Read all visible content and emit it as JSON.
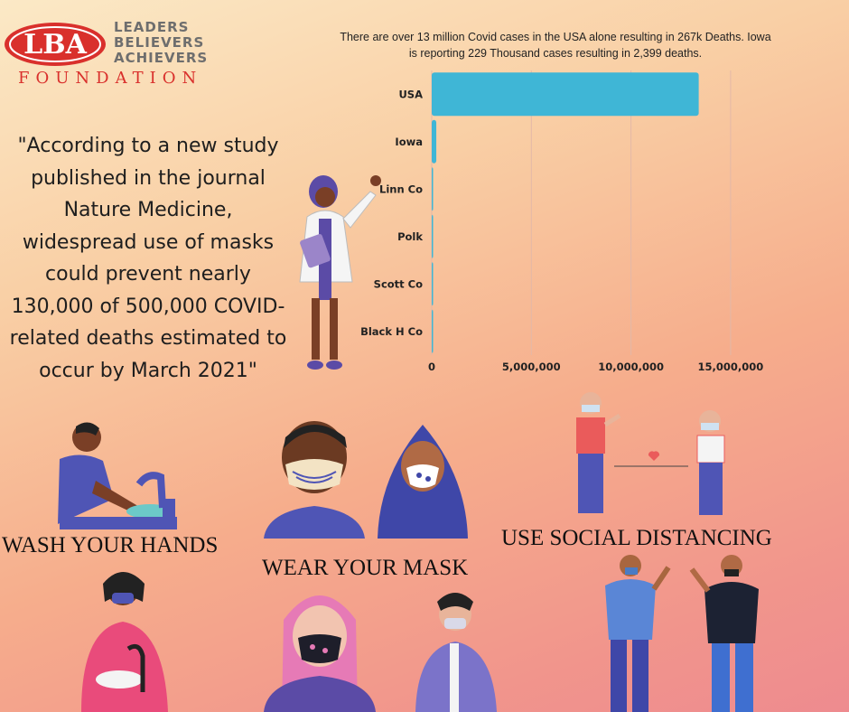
{
  "logo": {
    "badge": "LBA",
    "words": [
      "LEADERS",
      "BELIEVERS",
      "ACHIEVERS"
    ],
    "foundation": "FOUNDATION",
    "colors": {
      "red": "#d9302c",
      "gray": "#6e6e6e"
    }
  },
  "caption": "There are over 13 million Covid cases in the USA alone resulting in 267k Deaths. Iowa is reporting 229 Thousand cases resulting in 2,399 deaths.",
  "quote": "\"According to a new study published in the journal Nature Medicine, widespread use of masks could prevent nearly 130,000 of 500,000 COVID-related deaths estimated to occur by March 2021\"",
  "slogans": {
    "wash": "WASH YOUR HANDS",
    "mask": "WEAR YOUR MASK",
    "distance": "USE SOCIAL DISTANCING"
  },
  "chart_data": {
    "type": "bar",
    "orientation": "horizontal",
    "categories": [
      "USA",
      "Iowa",
      "Linn Co",
      "Polk",
      "Scott Co",
      "Black H Co"
    ],
    "values": [
      13400000,
      229000,
      13000,
      35000,
      10500,
      9500
    ],
    "x_ticks": [
      0,
      5000000,
      10000000,
      15000000
    ],
    "x_tick_labels": [
      "0",
      "5,000,000",
      "10,000,000",
      "15,000,000"
    ],
    "xlim": [
      0,
      16500000
    ],
    "grid": true,
    "bar_color": "#3fb6d6"
  },
  "icons": [
    "doctor-illustration",
    "handwashing-illustration",
    "masked-faces-illustration",
    "social-distancing-illustration"
  ]
}
